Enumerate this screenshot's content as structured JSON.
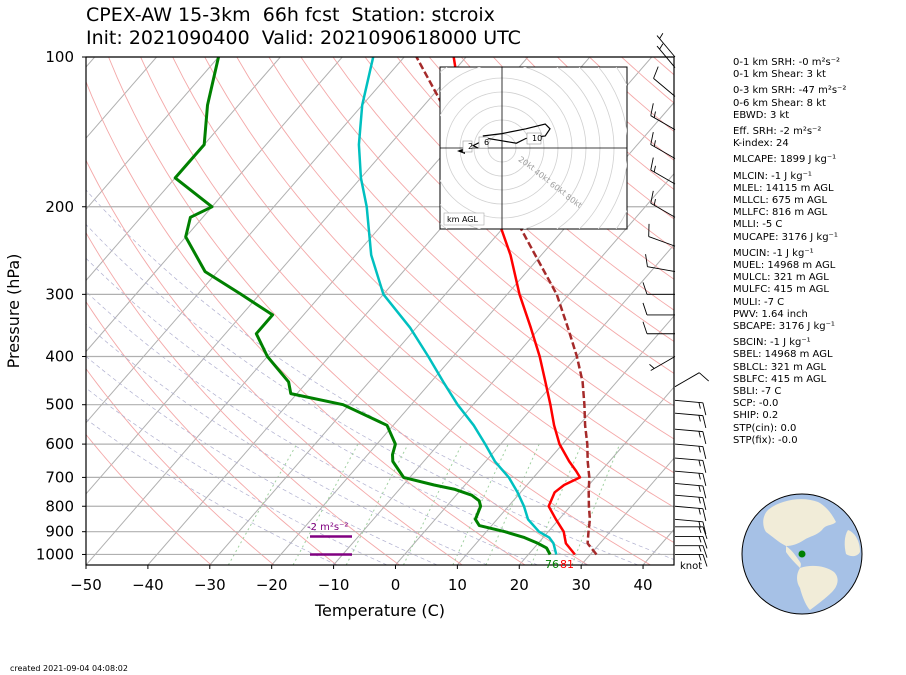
{
  "header": {
    "title_line1": "CPEX-AW 15-3km  66h fcst  Station: stcroix",
    "title_line2": "Init: 2021090400  Valid: 2021090618000 UTC"
  },
  "chart_data": {
    "type": "line",
    "title": "CPEX-AW 15-3km  66h fcst  Station: stcroix",
    "xlabel": "Temperature (C)",
    "ylabel": "Pressure (hPa)",
    "xlim": [
      -50,
      45
    ],
    "ylim": [
      1050,
      100
    ],
    "y_scale": "log",
    "x_ticks": [
      -50,
      -40,
      -30,
      -20,
      -10,
      0,
      10,
      20,
      30,
      40
    ],
    "y_ticks": [
      1000,
      900,
      800,
      700,
      600,
      500,
      400,
      300,
      200,
      100
    ],
    "grid": true,
    "series": [
      {
        "color": "#ff0000",
        "pressure": [
          1000,
          950,
          925,
          900,
          850,
          800,
          750,
          725,
          700,
          680,
          650,
          600,
          550,
          500,
          450,
          400,
          350,
          300,
          250,
          200,
          175,
          150,
          125,
          100
        ],
        "temperature": [
          27.5,
          24.5,
          23.5,
          22.5,
          19.5,
          16.5,
          15.5,
          16,
          17.5,
          16,
          13.5,
          9.5,
          6,
          2.5,
          -1.5,
          -6,
          -11.5,
          -18,
          -25,
          -34.5,
          -40,
          -46.5,
          -54,
          -62
        ]
      },
      {
        "color": "#00c0c0",
        "pressure": [
          1000,
          950,
          925,
          900,
          850,
          800,
          750,
          700,
          650,
          600,
          550,
          500,
          450,
          400,
          350,
          300,
          250,
          200,
          175,
          150,
          125,
          100
        ],
        "temperature": [
          24.5,
          22.5,
          21,
          18.5,
          15,
          12.5,
          9.5,
          6,
          1.5,
          -2.5,
          -7,
          -12.5,
          -18,
          -24,
          -31,
          -40,
          -47.5,
          -55,
          -60,
          -65,
          -70,
          -75
        ]
      },
      {
        "color": "#008000",
        "pressure": [
          1000,
          970,
          950,
          925,
          900,
          875,
          850,
          800,
          780,
          760,
          740,
          725,
          700,
          650,
          630,
          600,
          550,
          500,
          475,
          450,
          400,
          360,
          330,
          300,
          270,
          230,
          210,
          200,
          175,
          150,
          125,
          100
        ],
        "temperature": [
          23.5,
          22,
          20,
          17,
          13,
          8,
          6.5,
          5.5,
          4.5,
          2.5,
          -1,
          -5,
          -11,
          -15,
          -16,
          -17,
          -21,
          -31,
          -41,
          -43,
          -50,
          -55,
          -55,
          -63,
          -72,
          -80,
          -82,
          -80,
          -90,
          -90,
          -95,
          -100
        ]
      },
      {
        "color": "#a52a2a",
        "style": "dashed",
        "pressure": [
          1000,
          950,
          900,
          850,
          800,
          750,
          700,
          650,
          600,
          550,
          500,
          450,
          400,
          350,
          300,
          250,
          200,
          150,
          100
        ],
        "temperature": [
          31,
          28,
          26.5,
          25,
          23,
          21,
          19,
          16.5,
          14,
          11,
          8,
          4.5,
          0,
          -5.5,
          -12,
          -21,
          -32,
          -48,
          -68
        ]
      }
    ],
    "annotations": [
      {
        "text": "-2 m²s⁻²",
        "pressure": 880,
        "temperature": -14
      },
      {
        "text": "76",
        "pressure": 1030,
        "temperature": 24
      },
      {
        "text": "81",
        "pressure": 1030,
        "temperature": 27
      }
    ],
    "levels_bars": [
      {
        "pressure": 920,
        "color": "#800080"
      },
      {
        "pressure": 1000,
        "color": "#800080"
      }
    ],
    "wind_barbs": {
      "unit": "knot",
      "pressure": [
        1000,
        960,
        920,
        880,
        850,
        800,
        760,
        720,
        680,
        640,
        600,
        560,
        520,
        490,
        460,
        400,
        360,
        330,
        300,
        270,
        240,
        210,
        180,
        160,
        140,
        120,
        105,
        100
      ],
      "speed": [
        15,
        15,
        15,
        15,
        15,
        15,
        15,
        15,
        15,
        15,
        15,
        15,
        15,
        15,
        10,
        5,
        10,
        10,
        10,
        10,
        10,
        15,
        15,
        15,
        15,
        10,
        5,
        5
      ],
      "direction": [
        90,
        90,
        90,
        90,
        95,
        95,
        95,
        95,
        95,
        95,
        95,
        95,
        95,
        95,
        60,
        240,
        270,
        270,
        270,
        280,
        290,
        300,
        300,
        300,
        300,
        310,
        320,
        320
      ]
    },
    "hodograph": {
      "legend": "km AGL",
      "ring_labels": [
        "20kt",
        "40kt",
        "60kt",
        "80kt"
      ],
      "height_labels": [
        "2",
        "6",
        "10"
      ],
      "u": [
        -10,
        -12,
        -6,
        0,
        6,
        10,
        18,
        20,
        18,
        10,
        0,
        -8
      ],
      "v": [
        0,
        1,
        4,
        3,
        2,
        4,
        5,
        8,
        10,
        8,
        6,
        5
      ]
    }
  },
  "params": [
    {
      "label": "0-1 km SRH: -0 m²s⁻²"
    },
    {
      "label": "0-1 km Shear: 3 kt"
    },
    {
      "gap": true
    },
    {
      "label": "0-3 km SRH: -47 m²s⁻²"
    },
    {
      "label": "0-6 km Shear: 8 kt"
    },
    {
      "label": "EBWD: 3 kt"
    },
    {
      "gap": true
    },
    {
      "label": "Eff. SRH: -2 m²s⁻²"
    },
    {
      "label": "K-index: 24"
    },
    {
      "gap": true
    },
    {
      "label": "MLCAPE: 1899 J kg⁻¹"
    },
    {
      "gap": true
    },
    {
      "label": "MLCIN: -1 J kg⁻¹"
    },
    {
      "label": "MLEL: 14115 m AGL"
    },
    {
      "label": "MLLCL: 675 m AGL"
    },
    {
      "label": "MLLFC: 816 m AGL"
    },
    {
      "label": "MLLI: -5 C"
    },
    {
      "label": "MUCAPE: 3176 J kg⁻¹"
    },
    {
      "gap": true
    },
    {
      "label": "MUCIN: -1 J kg⁻¹"
    },
    {
      "label": "MUEL: 14968 m AGL"
    },
    {
      "label": "MULCL: 321 m AGL"
    },
    {
      "label": "MULFC: 415 m AGL"
    },
    {
      "label": "MULI: -7 C"
    },
    {
      "label": "PWV: 1.64 inch"
    },
    {
      "label": "SBCAPE: 3176 J kg⁻¹"
    },
    {
      "gap": true
    },
    {
      "label": "SBCIN: -1 J kg⁻¹"
    },
    {
      "label": "SBEL: 14968 m AGL"
    },
    {
      "label": "SBLCL: 321 m AGL"
    },
    {
      "label": "SBLFC: 415 m AGL"
    },
    {
      "label": "SBLI: -7 C"
    },
    {
      "label": "SCP: -0.0"
    },
    {
      "label": "SHIP: 0.2"
    },
    {
      "label": "STP(cin): 0.0"
    },
    {
      "label": "STP(fix): -0.0"
    }
  ],
  "footer": {
    "created": "created 2021-09-04 04:08:02",
    "barb_unit_label": "knot"
  },
  "colors": {
    "temperature": "#ff0000",
    "dewpoint": "#008000",
    "wetbulb": "#00c0c0",
    "parcel": "#a52a2a",
    "isotherm": "#b0b0b0",
    "dry_adiabat": "#f4a8a8",
    "mixing_ratio": "#a0d0a0",
    "ocean": "#a6c1e6",
    "land": "#f1ecd8"
  }
}
